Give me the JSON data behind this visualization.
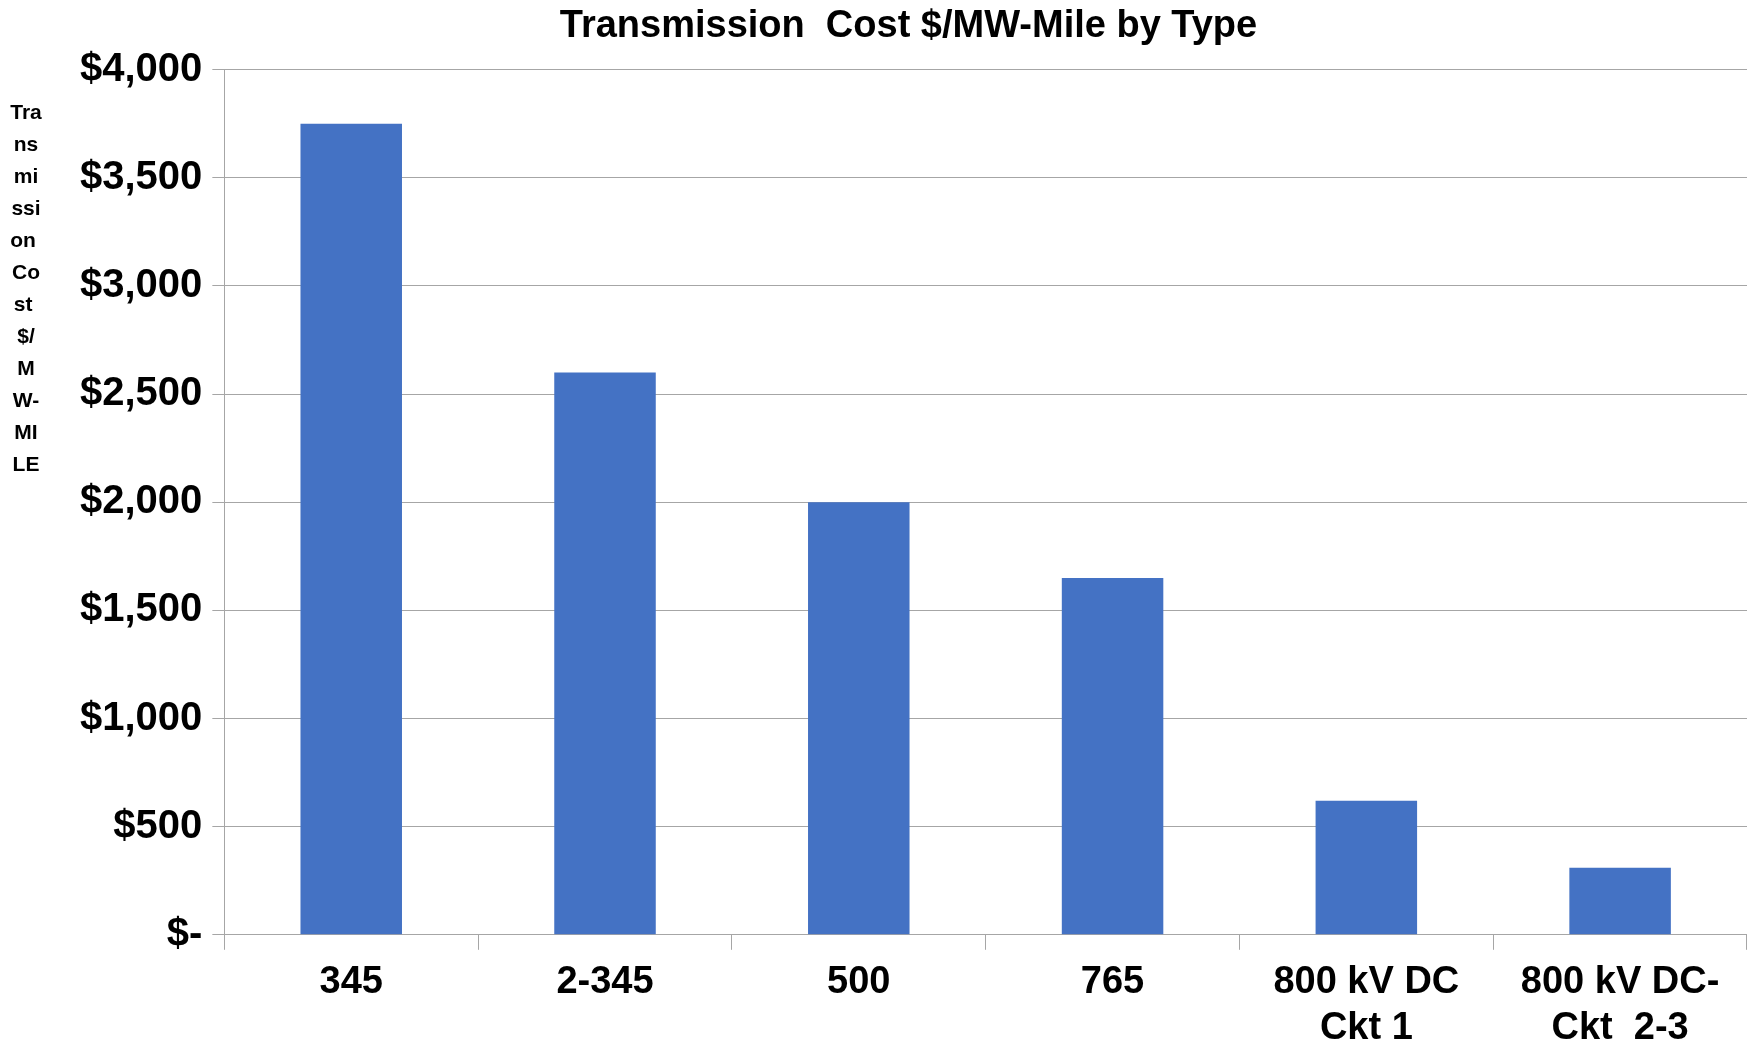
{
  "chart_data": {
    "type": "bar",
    "title": "Transmission  Cost $/MW-Mile by Type",
    "ylabel": "Transmission Cost $/MW-MILE",
    "categories": [
      "345",
      "2-345",
      "500",
      "765",
      "800 kV DC\nCkt 1",
      "800 kV DC-\nCkt  2-3"
    ],
    "values": [
      3750,
      2600,
      2000,
      1650,
      620,
      310
    ],
    "color": "#4472c4",
    "ylim": [
      0,
      4000
    ],
    "yticks": [
      {
        "value": 0,
        "label": "$-"
      },
      {
        "value": 500,
        "label": "$500"
      },
      {
        "value": 1000,
        "label": "$1,000"
      },
      {
        "value": 1500,
        "label": "$1,500"
      },
      {
        "value": 2000,
        "label": "$2,000"
      },
      {
        "value": 2500,
        "label": "$2,500"
      },
      {
        "value": 3000,
        "label": "$3,000"
      },
      {
        "value": 3500,
        "label": "$3,500"
      },
      {
        "value": 4000,
        "label": "$4,000"
      }
    ],
    "grid": "y",
    "legend": false
  }
}
